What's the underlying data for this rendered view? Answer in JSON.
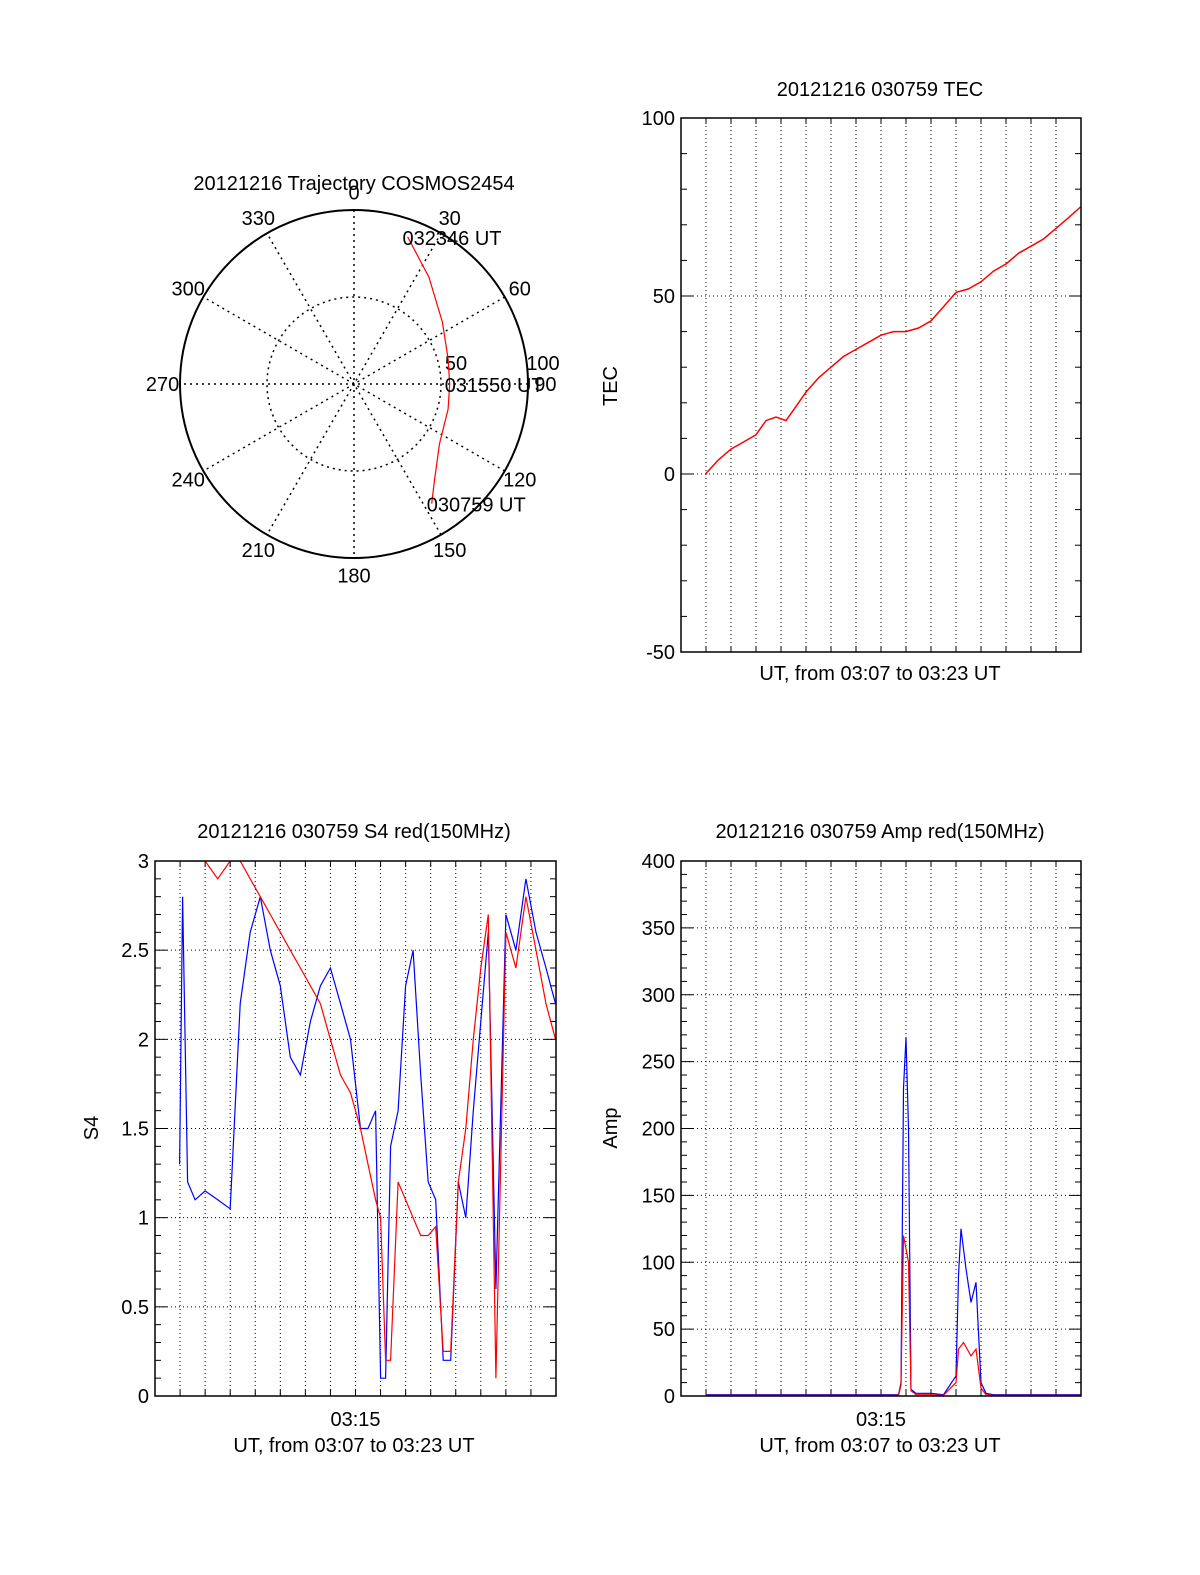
{
  "colors": {
    "red": "#ff0000",
    "blue": "#0000ff",
    "axis": "#000000",
    "grid": "#000000"
  },
  "chart_data": [
    {
      "type": "polar",
      "title": "20121216 Trajectory COSMOS2454",
      "angle_labels": [
        "0",
        "30",
        "60",
        "90",
        "120",
        "150",
        "180",
        "210",
        "240",
        "270",
        "300",
        "330"
      ],
      "radius_labels": [
        "50",
        "100"
      ],
      "rlim": [
        0,
        100
      ],
      "grid": true,
      "series": [
        {
          "color": "#ff0000",
          "points": [
            [
              20,
              90
            ],
            [
              35,
              75
            ],
            [
              55,
              62
            ],
            [
              75,
              56
            ],
            [
              90,
              55
            ],
            [
              105,
              56
            ],
            [
              125,
              60
            ],
            [
              140,
              72
            ],
            [
              147,
              82
            ]
          ]
        }
      ],
      "annotations": [
        {
          "text": "032346 UT",
          "at": [
            20,
            90
          ]
        },
        {
          "text": "031550 UT",
          "at": [
            90,
            55
          ]
        },
        {
          "text": "030759 UT",
          "at": [
            147,
            82
          ]
        }
      ]
    },
    {
      "type": "line",
      "title": "20121216 030759 TEC",
      "xlabel": "UT, from 03:07 to 03:23 UT",
      "ylabel": "TEC",
      "xlim_minutes": [
        7.0,
        23.0
      ],
      "ylim": [
        -50,
        100
      ],
      "yticks": [
        "-50",
        "0",
        "50",
        "100"
      ],
      "xticks": [],
      "grid": true,
      "series": [
        {
          "color": "#ff0000",
          "x": [
            7.98,
            8.5,
            9.0,
            9.5,
            10.0,
            10.4,
            10.8,
            11.2,
            11.6,
            12.0,
            12.5,
            13.0,
            13.5,
            14.0,
            14.5,
            15.0,
            15.5,
            16.0,
            16.5,
            17.0,
            17.5,
            18.0,
            18.5,
            19.0,
            19.5,
            20.0,
            20.5,
            21.0,
            21.5,
            22.0,
            22.5,
            22.98
          ],
          "y": [
            0,
            4,
            7,
            9,
            11,
            15,
            16,
            15,
            19,
            23,
            27,
            30,
            33,
            35,
            37,
            39,
            40,
            40,
            41,
            43,
            47,
            51,
            52,
            54,
            57,
            59,
            62,
            64,
            66,
            69,
            72,
            75
          ]
        }
      ]
    },
    {
      "type": "line",
      "title": "20121216 030759 S4 red(150MHz)",
      "xlabel": "UT, from 03:07 to 03:23 UT",
      "ylabel": "S4",
      "xlim_minutes": [
        7.0,
        23.0
      ],
      "ylim": [
        0,
        3
      ],
      "yticks": [
        "0",
        "0.5",
        "1",
        "1.5",
        "2",
        "2.5",
        "3"
      ],
      "xticks": [
        "03:15"
      ],
      "grid": true,
      "series": [
        {
          "color": "#0000ff",
          "x": [
            7.98,
            8.1,
            8.3,
            8.6,
            9.0,
            9.5,
            10.0,
            10.4,
            10.8,
            11.2,
            11.6,
            12.0,
            12.4,
            12.8,
            13.2,
            13.6,
            14.0,
            14.4,
            14.8,
            15.2,
            15.5,
            15.8,
            16.0,
            16.2,
            16.4,
            16.7,
            17.0,
            17.3,
            17.6,
            17.9,
            18.2,
            18.5,
            18.8,
            19.1,
            19.4,
            19.7,
            20.0,
            20.3,
            20.6,
            21.0,
            21.4,
            21.8,
            22.2,
            22.6,
            22.98
          ],
          "y": [
            1.3,
            2.8,
            1.2,
            1.1,
            1.15,
            1.1,
            1.05,
            2.2,
            2.6,
            2.8,
            2.5,
            2.3,
            1.9,
            1.8,
            2.1,
            2.3,
            2.4,
            2.2,
            2.0,
            1.5,
            1.5,
            1.6,
            0.1,
            0.1,
            1.4,
            1.6,
            2.3,
            2.5,
            1.8,
            1.2,
            1.1,
            0.2,
            0.2,
            1.2,
            1.0,
            1.6,
            2.1,
            2.6,
            0.6,
            2.7,
            2.5,
            2.9,
            2.6,
            2.4,
            2.2
          ]
        },
        {
          "color": "#ff0000",
          "x": [
            7.98,
            8.2,
            8.6,
            9.0,
            9.5,
            10.0,
            10.4,
            10.8,
            11.2,
            11.6,
            12.0,
            12.4,
            12.8,
            13.2,
            13.6,
            14.0,
            14.4,
            14.8,
            15.2,
            15.5,
            15.8,
            16.0,
            16.2,
            16.4,
            16.7,
            17.0,
            17.3,
            17.6,
            17.9,
            18.2,
            18.5,
            18.8,
            19.1,
            19.4,
            19.7,
            20.0,
            20.3,
            20.6,
            21.0,
            21.4,
            21.8,
            22.2,
            22.6,
            22.98
          ],
          "y": [
            3.0,
            3.0,
            3.0,
            3.0,
            2.9,
            3.0,
            3.0,
            2.9,
            2.8,
            2.7,
            2.6,
            2.5,
            2.4,
            2.3,
            2.2,
            2.0,
            1.8,
            1.7,
            1.5,
            1.3,
            1.1,
            1.0,
            0.2,
            0.2,
            1.2,
            1.1,
            1.0,
            0.9,
            0.9,
            0.95,
            0.25,
            0.25,
            1.2,
            1.5,
            2.0,
            2.4,
            2.7,
            0.1,
            2.6,
            2.4,
            2.8,
            2.5,
            2.2,
            2.0
          ]
        }
      ]
    },
    {
      "type": "line",
      "title": "20121216 030759 Amp red(150MHz)",
      "xlabel": "UT, from 03:07 to 03:23 UT",
      "ylabel": "Amp",
      "xlim_minutes": [
        7.0,
        23.0
      ],
      "ylim": [
        0,
        400
      ],
      "yticks": [
        "0",
        "50",
        "100",
        "150",
        "200",
        "250",
        "300",
        "350",
        "400"
      ],
      "xticks": [
        "03:15"
      ],
      "grid": true,
      "series": [
        {
          "color": "#0000ff",
          "x": [
            7.98,
            15.7,
            15.8,
            15.9,
            16.0,
            16.1,
            16.2,
            16.4,
            17.0,
            17.5,
            18.0,
            18.1,
            18.2,
            18.4,
            18.6,
            18.8,
            19.0,
            19.2,
            19.5,
            22.98
          ],
          "y": [
            1,
            1,
            10,
            230,
            268,
            200,
            5,
            2,
            2,
            1,
            15,
            90,
            125,
            95,
            70,
            85,
            10,
            2,
            1,
            1
          ]
        },
        {
          "color": "#ff0000",
          "x": [
            7.98,
            15.7,
            15.8,
            15.9,
            16.0,
            16.1,
            16.2,
            16.4,
            17.0,
            17.5,
            18.0,
            18.1,
            18.3,
            18.6,
            18.8,
            19.0,
            19.2,
            19.5,
            22.98
          ],
          "y": [
            0.5,
            0.5,
            8,
            120,
            110,
            100,
            4,
            1,
            1,
            0.5,
            10,
            35,
            40,
            30,
            35,
            6,
            1,
            0.5,
            0.5
          ]
        }
      ]
    }
  ]
}
